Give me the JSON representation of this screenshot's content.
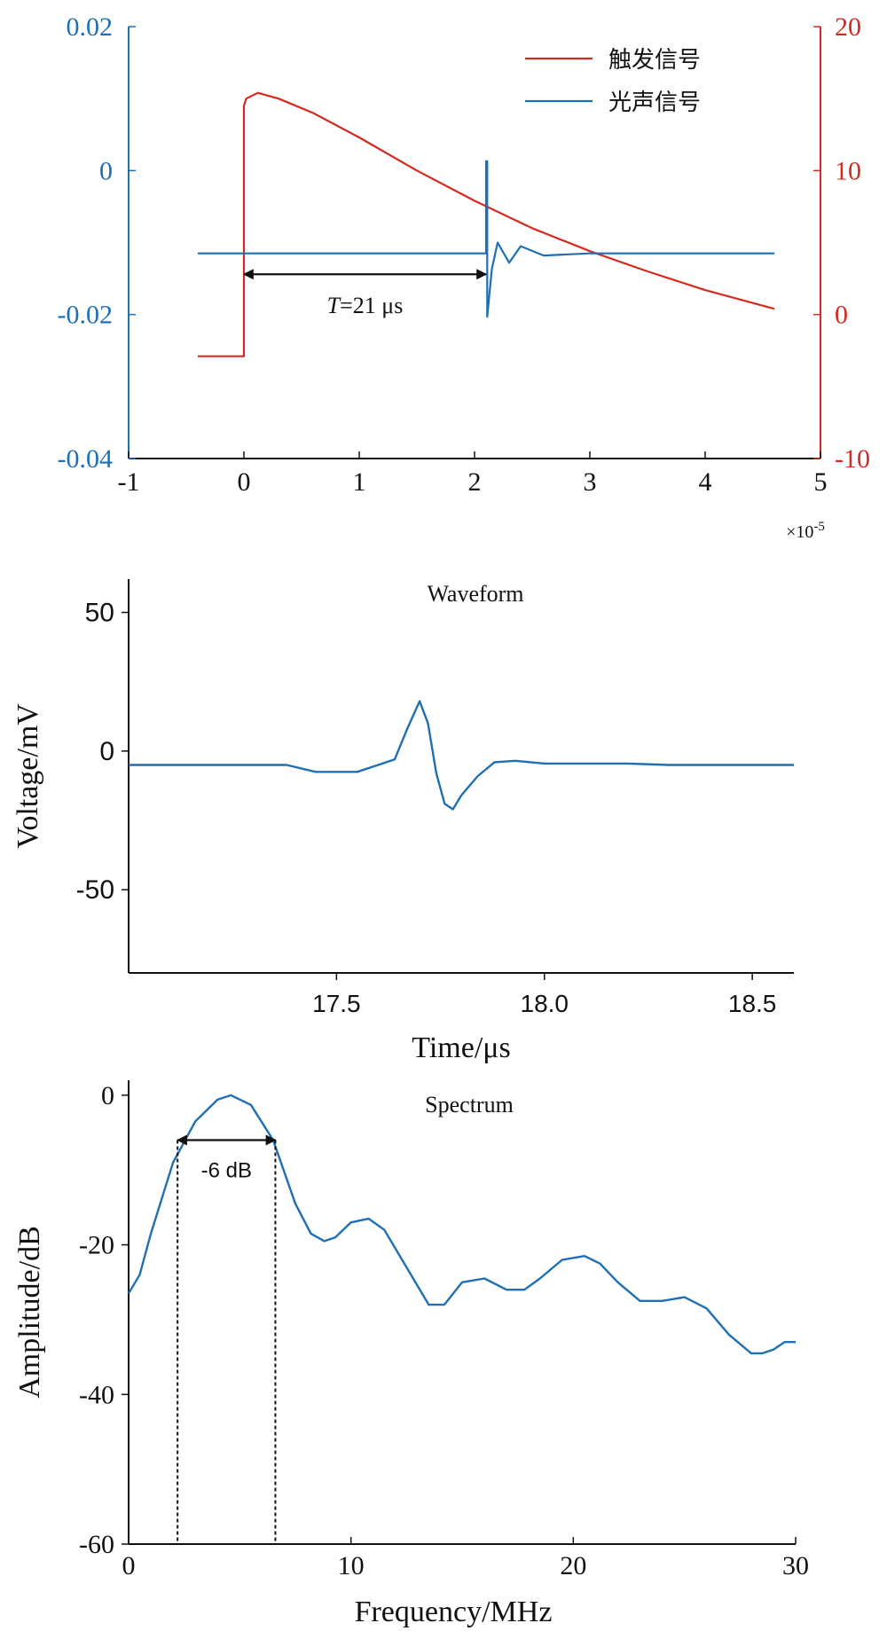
{
  "chart_data": [
    {
      "type": "line",
      "title": "",
      "xlabel": "",
      "xlim": [
        -1,
        5
      ],
      "x_ticks": [
        "-1",
        "0",
        "1",
        "2",
        "3",
        "4",
        "5"
      ],
      "x_tick_values": [
        -1,
        0,
        1,
        2,
        3,
        4,
        5
      ],
      "x_multiplier": "×10",
      "x_multiplier_exp": "-5",
      "y_left": {
        "lim": [
          -0.04,
          0.02
        ],
        "ticks": [
          "-0.04",
          "-0.02",
          "0",
          "0.02"
        ],
        "tick_values": [
          -0.04,
          -0.02,
          0,
          0.02
        ],
        "color": "#1f6fb5"
      },
      "y_right": {
        "lim": [
          -10,
          20
        ],
        "ticks": [
          "-10",
          "0",
          "10",
          "20"
        ],
        "tick_values": [
          -10,
          0,
          10,
          20
        ],
        "color": "#d42a20"
      },
      "legend_position": "top-right",
      "series": [
        {
          "name": "触发信号",
          "axis": "right",
          "color": "#d42a20",
          "x": [
            -0.4,
            0.0,
            0.0,
            0.02,
            0.12,
            0.3,
            0.6,
            1.0,
            1.5,
            2.0,
            2.5,
            3.0,
            3.5,
            4.0,
            4.6
          ],
          "y": [
            -2.9,
            -2.9,
            14.5,
            15.0,
            15.4,
            15.0,
            14.0,
            12.3,
            10.0,
            7.9,
            6.0,
            4.4,
            3.0,
            1.7,
            0.4
          ]
        },
        {
          "name": "光声信号",
          "axis": "left",
          "color": "#1f6fb5",
          "x": [
            -0.4,
            1.0,
            2.0,
            2.1,
            2.1,
            2.11,
            2.11,
            2.15,
            2.2,
            2.3,
            2.4,
            2.6,
            3.0,
            4.6
          ],
          "y": [
            -0.0115,
            -0.0115,
            -0.0115,
            -0.0115,
            0.0013,
            0.0013,
            -0.0203,
            -0.0137,
            -0.01,
            -0.0128,
            -0.0105,
            -0.0118,
            -0.0115,
            -0.0115
          ]
        }
      ],
      "annotation": {
        "text_italic": "T",
        "text_rest": "=21 μs",
        "x_start": 0,
        "x_end": 2.1,
        "y": -0.0144
      }
    },
    {
      "type": "line",
      "title": "Waveform",
      "xlabel": "Time/μs",
      "ylabel": "Voltage/mV",
      "xlim": [
        17.0,
        18.6
      ],
      "ylim": [
        -80,
        62
      ],
      "x_ticks": [
        "17.5",
        "18.0",
        "18.5"
      ],
      "x_tick_values": [
        17.5,
        18.0,
        18.5
      ],
      "y_ticks": [
        "-50",
        "0",
        "50"
      ],
      "y_tick_values": [
        -50,
        0,
        50
      ],
      "series": [
        {
          "color": "#1f6fb5",
          "x": [
            17.0,
            17.2,
            17.38,
            17.45,
            17.55,
            17.6,
            17.64,
            17.67,
            17.7,
            17.72,
            17.74,
            17.76,
            17.78,
            17.8,
            17.84,
            17.88,
            17.93,
            18.0,
            18.1,
            18.2,
            18.3,
            18.4,
            18.5,
            18.6
          ],
          "y": [
            -5,
            -5,
            -5,
            -7.5,
            -7.5,
            -5,
            -3,
            8,
            18,
            10,
            -8,
            -19,
            -21,
            -16,
            -9,
            -4,
            -3.5,
            -4.5,
            -4.5,
            -4.5,
            -5,
            -5,
            -5,
            -5
          ]
        }
      ]
    },
    {
      "type": "line",
      "title": "Spectrum",
      "xlabel": "Frequency/MHz",
      "ylabel": "Amplitude/dB",
      "xlim": [
        0,
        30
      ],
      "ylim": [
        -60,
        2
      ],
      "x_ticks": [
        "0",
        "10",
        "20",
        "30"
      ],
      "x_tick_values": [
        0,
        10,
        20,
        30
      ],
      "y_ticks": [
        "-60",
        "-40",
        "-20",
        "0"
      ],
      "y_tick_values": [
        -60,
        -40,
        -20,
        0
      ],
      "series": [
        {
          "color": "#1f6fb5",
          "x": [
            0,
            0.5,
            1,
            2,
            3,
            4,
            4.6,
            5.5,
            6.5,
            7.5,
            8.2,
            8.8,
            9.3,
            10,
            10.8,
            11.5,
            12.5,
            13.5,
            14.2,
            15,
            16,
            17,
            17.8,
            18.5,
            19.5,
            20.5,
            21.2,
            22,
            23,
            24,
            25,
            26,
            27,
            28,
            28.5,
            29,
            29.5,
            30
          ],
          "y": [
            -26.5,
            -24,
            -18.5,
            -9,
            -3.5,
            -0.6,
            0,
            -1.3,
            -6,
            -14.5,
            -18.5,
            -19.5,
            -19,
            -17,
            -16.5,
            -18,
            -23,
            -28,
            -28,
            -25,
            -24.5,
            -26,
            -26,
            -24.5,
            -22,
            -21.5,
            -22.5,
            -25,
            -27.5,
            -27.5,
            -27,
            -28.5,
            -32,
            -34.5,
            -34.5,
            -34,
            -33,
            -33
          ]
        }
      ],
      "annotation": {
        "text": "-6 dB",
        "x_start": 2.2,
        "x_end": 6.6,
        "y": -6
      }
    }
  ]
}
